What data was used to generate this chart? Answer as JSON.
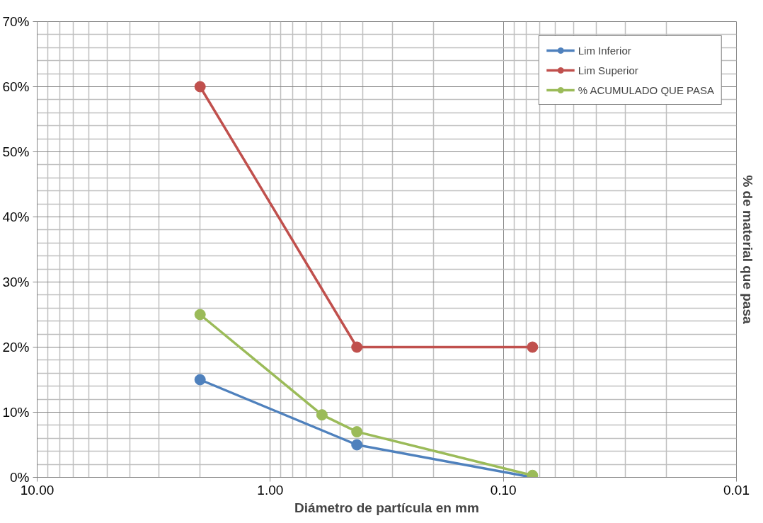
{
  "chart_data": {
    "type": "line",
    "xlabel": "Diámetro de partícula en mm",
    "ylabel": "% de material que pasa",
    "log": "x",
    "xlim": [
      10,
      0.01
    ],
    "xticks": [
      {
        "value": 10,
        "label": "10.00"
      },
      {
        "value": 1,
        "label": "1.00"
      },
      {
        "value": 0.1,
        "label": "0.10"
      },
      {
        "value": 0.01,
        "label": "0.01"
      }
    ],
    "ylim": [
      0,
      70
    ],
    "yticks": [
      {
        "value": 0,
        "label": "0%"
      },
      {
        "value": 10,
        "label": "10%"
      },
      {
        "value": 20,
        "label": "20%"
      },
      {
        "value": 30,
        "label": "30%"
      },
      {
        "value": 40,
        "label": "40%"
      },
      {
        "value": 50,
        "label": "50%"
      },
      {
        "value": 60,
        "label": "60%"
      },
      {
        "value": 70,
        "label": "70%"
      }
    ],
    "grid": true,
    "legend": "top right",
    "marker": "circle",
    "series": [
      {
        "name": "Lim Inferior",
        "color": "#4f81bd",
        "x": [
          2.0,
          0.425,
          0.075
        ],
        "values": [
          15,
          5,
          0
        ]
      },
      {
        "name": "Lim Superior",
        "color": "#c0504d",
        "x": [
          2.0,
          0.425,
          0.075
        ],
        "values": [
          60,
          20,
          20
        ]
      },
      {
        "name": "% ACUMULADO QUE PASA",
        "color": "#9bbb59",
        "x": [
          2.0,
          0.6,
          0.425,
          0.075
        ],
        "values": [
          25,
          9.6,
          7,
          0.3
        ]
      }
    ]
  }
}
